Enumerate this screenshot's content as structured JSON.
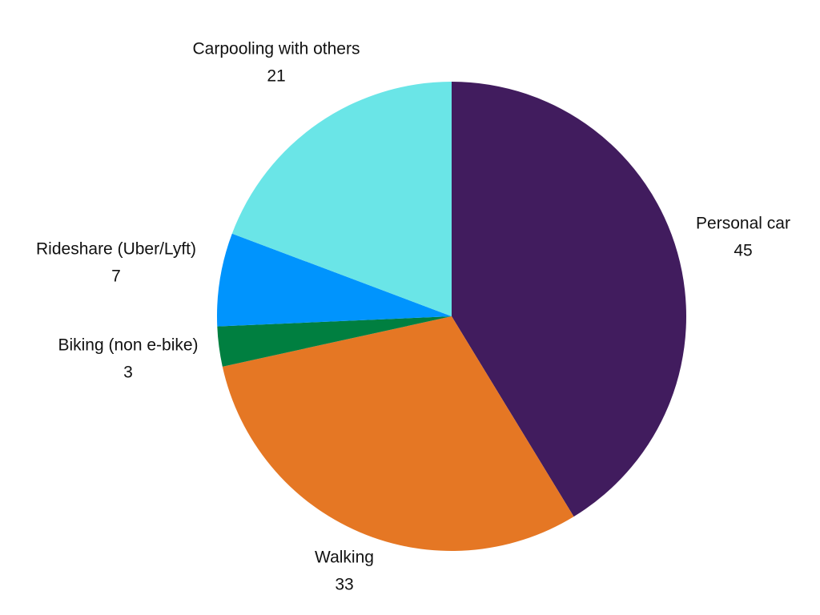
{
  "chart_data": {
    "type": "pie",
    "categories": [
      "Personal car",
      "Walking",
      "Biking (non e-bike)",
      "Rideshare (Uber/Lyft)",
      "Carpooling with others"
    ],
    "values": [
      45,
      33,
      3,
      7,
      21
    ],
    "colors": [
      "#411c5e",
      "#e57724",
      "#007f40",
      "#0094fd",
      "#6ae5e7"
    ]
  }
}
